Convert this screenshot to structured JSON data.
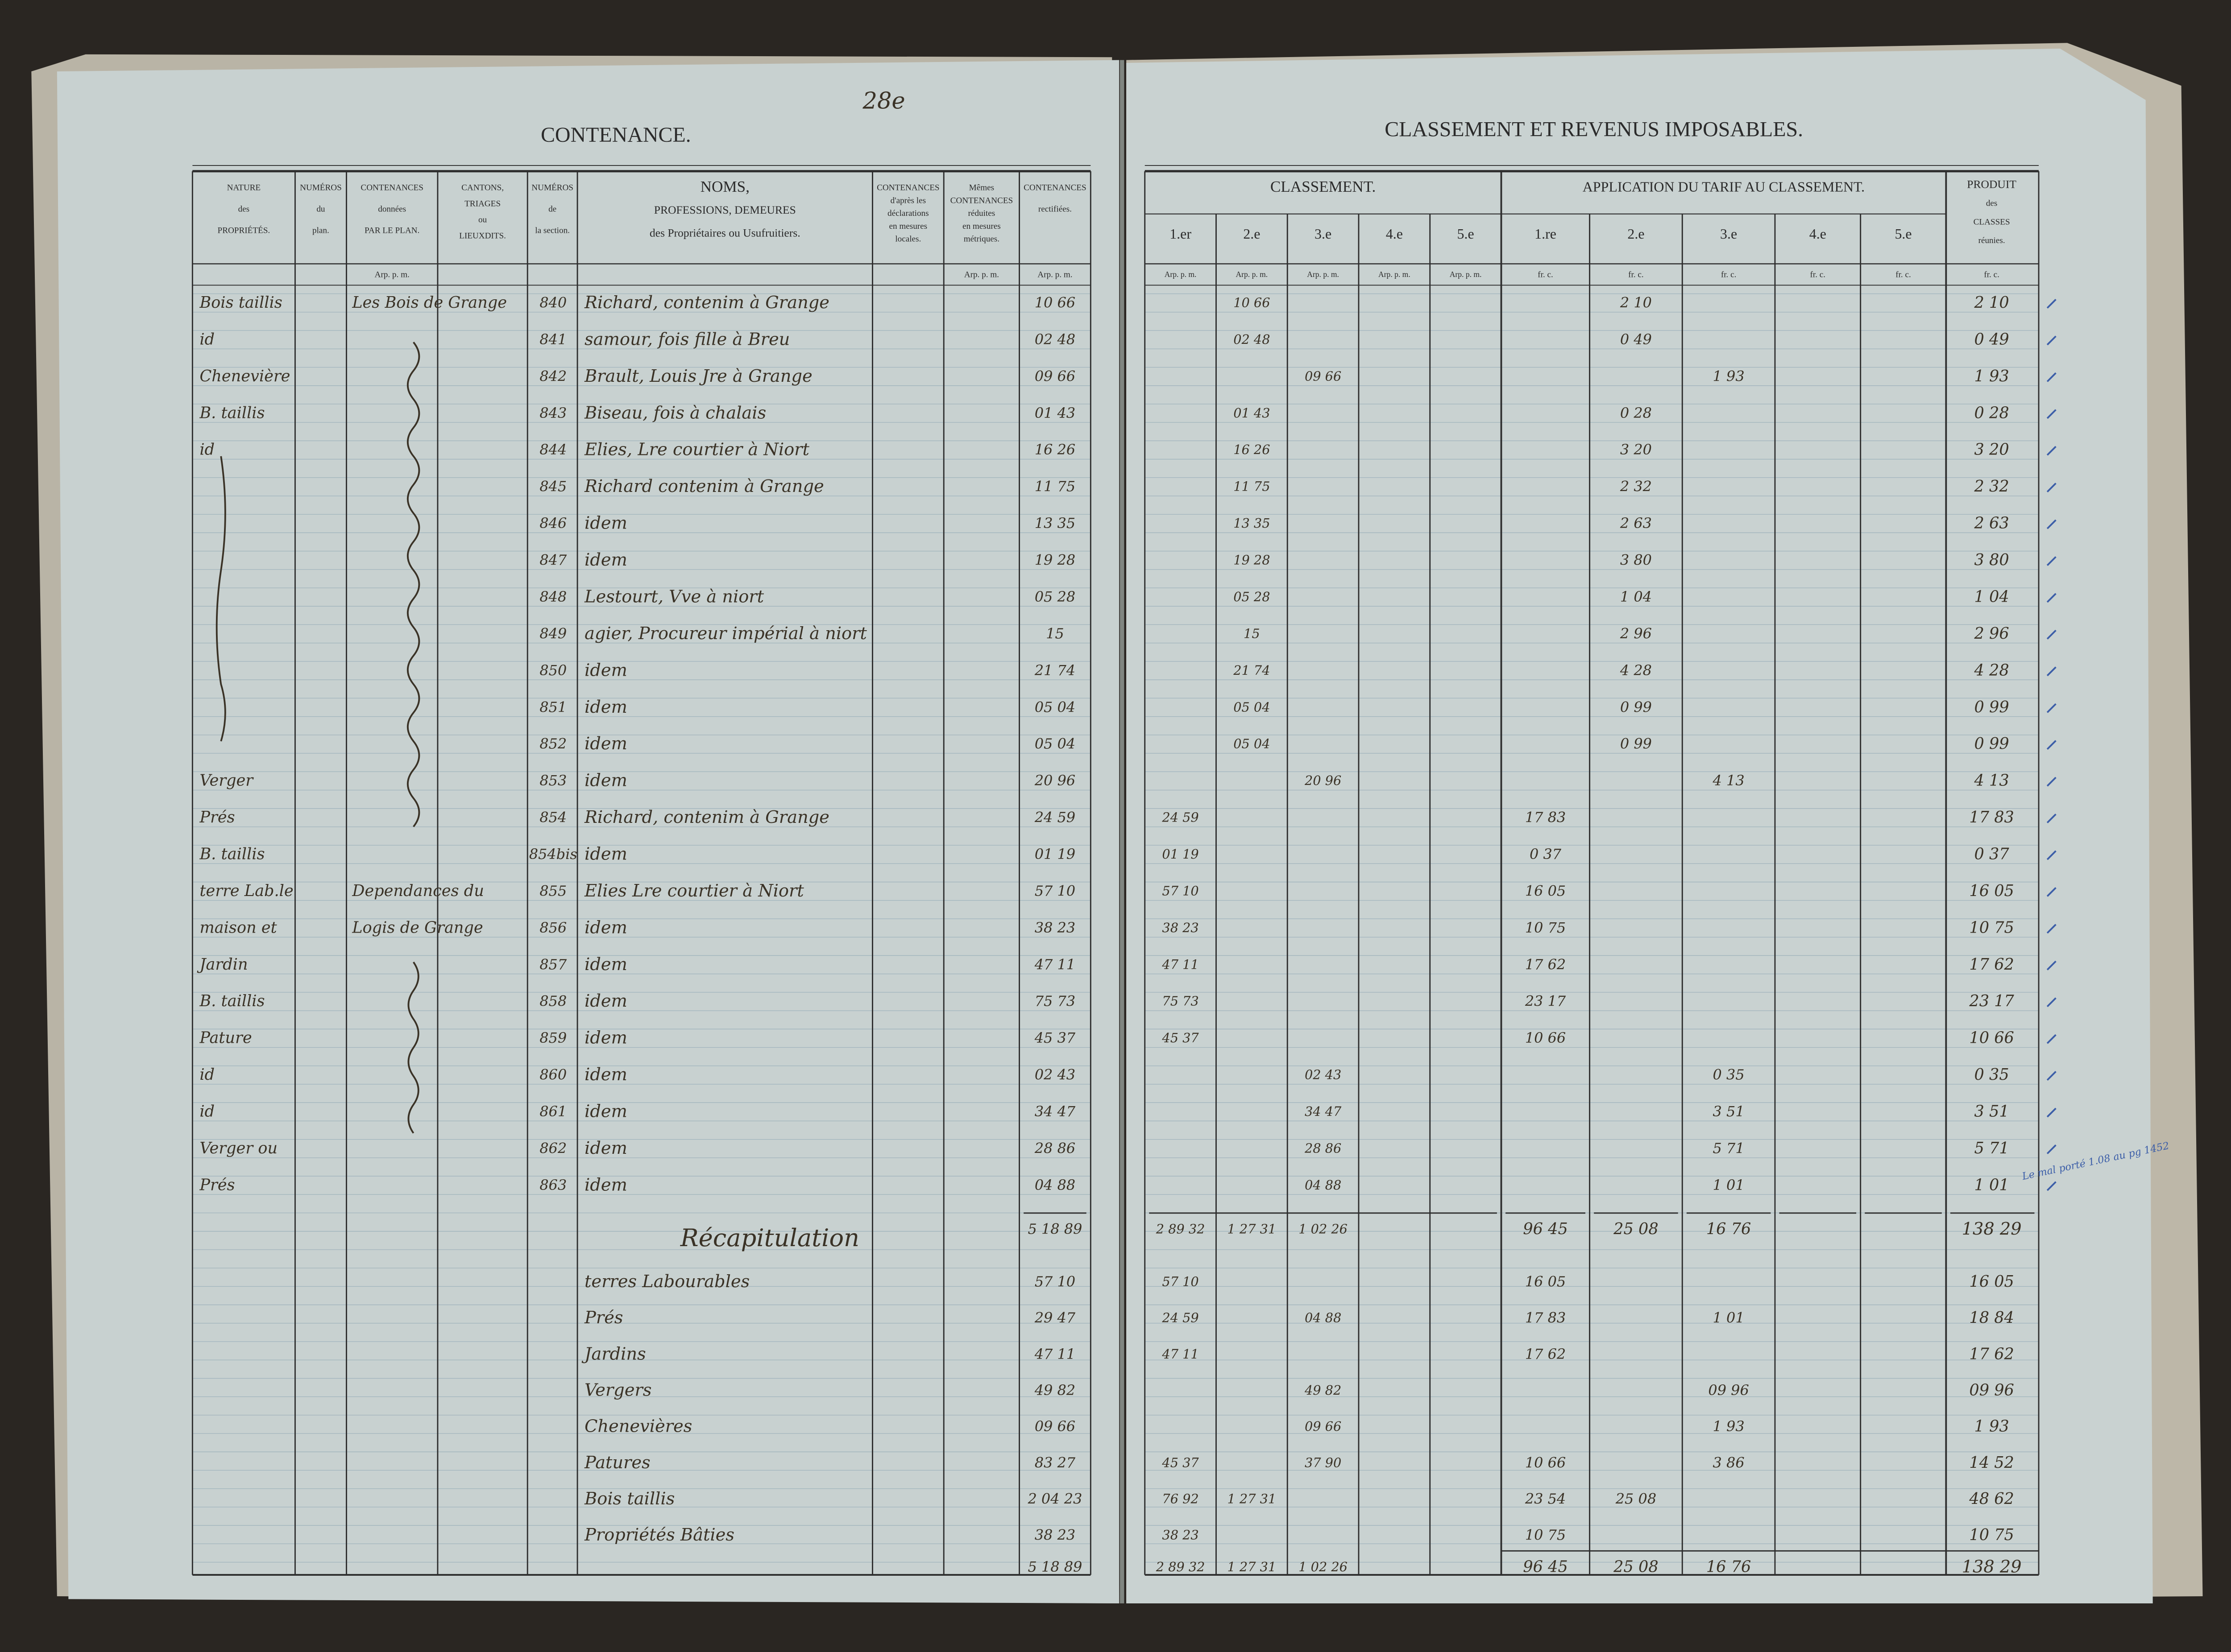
{
  "left_page": {
    "page_number": "28e",
    "title": "CONTENANCE.",
    "columns": [
      [
        "NATURE",
        "des",
        "PROPRIÉTÉS."
      ],
      [
        "NUMÉROS",
        "du",
        "plan."
      ],
      [
        "CONTENANCES",
        "données",
        "PAR LE PLAN."
      ],
      [
        "CANTONS,",
        "TRIAGES",
        "ou",
        "LIEUXDITS."
      ],
      [
        "NUMÉROS",
        "de",
        "la section."
      ],
      [
        "NOMS,",
        "PROFESSIONS, DEMEURES",
        "des Propriétaires ou Usufruitiers."
      ],
      [
        "CONTENANCES",
        "d'après les",
        "déclarations",
        "en mesures",
        "locales."
      ],
      [
        "Mêmes",
        "CONTENANCES",
        "réduites",
        "en mesures",
        "métriques."
      ],
      [
        "CONTENANCES",
        "rectifiées."
      ]
    ],
    "units": [
      "Arp. p. m.",
      "Arp. p. m.",
      "Arp. p. m."
    ]
  },
  "right_page": {
    "title": "CLASSEMENT ET REVENUS IMPOSABLES.",
    "classement_title": "CLASSEMENT.",
    "classes": [
      "1.er",
      "2.e",
      "3.e",
      "4.e",
      "5.e"
    ],
    "tarif_title": "APPLICATION DU TARIF AU CLASSEMENT.",
    "tarif_classes": [
      "1.re",
      "2.e",
      "3.e",
      "4.e",
      "5.e"
    ],
    "produit": [
      "PRODUIT",
      "des",
      "CLASSES",
      "réunies."
    ],
    "unit_arp": "Arp. p. m.",
    "unit_fr": "fr. c."
  },
  "rows": [
    {
      "numero": "840",
      "nature": "Bois taillis",
      "lieu": "Les Bois de Grange",
      "nom": "Richard, contenim à Grange",
      "contenance": "10 66",
      "classement": [
        null,
        "10 66",
        null,
        null,
        null
      ],
      "tarif": [
        null,
        "2 10",
        null,
        null,
        null
      ],
      "produit": "2 10"
    },
    {
      "numero": "841",
      "nature": "id",
      "nom": "samour, fois fille à Breu",
      "contenance": "02 48",
      "classement": [
        null,
        "02 48",
        null,
        null,
        null
      ],
      "tarif": [
        null,
        "0 49",
        null,
        null,
        null
      ],
      "produit": "0 49"
    },
    {
      "numero": "842",
      "nature": "Chenevière",
      "nom": "Brault, Louis Jre à Grange",
      "contenance": "09 66",
      "classement": [
        null,
        null,
        "09 66",
        null,
        null
      ],
      "tarif": [
        null,
        null,
        "1 93",
        null,
        null
      ],
      "produit": "1 93"
    },
    {
      "numero": "843",
      "nature": "B. taillis",
      "nom": "Biseau, fois à chalais",
      "contenance": "01 43",
      "classement": [
        null,
        "01 43",
        null,
        null,
        null
      ],
      "tarif": [
        null,
        "0 28",
        null,
        null,
        null
      ],
      "produit": "0 28"
    },
    {
      "numero": "844",
      "nature": "id",
      "nom": "Elies, Lre courtier à Niort",
      "contenance": "16 26",
      "classement": [
        null,
        "16 26",
        null,
        null,
        null
      ],
      "tarif": [
        null,
        "3 20",
        null,
        null,
        null
      ],
      "produit": "3 20"
    },
    {
      "numero": "845",
      "nom": "Richard contenim à Grange",
      "contenance": "11 75",
      "classement": [
        null,
        "11 75",
        null,
        null,
        null
      ],
      "tarif": [
        null,
        "2 32",
        null,
        null,
        null
      ],
      "produit": "2 32"
    },
    {
      "numero": "846",
      "nom": "idem",
      "contenance": "13 35",
      "classement": [
        null,
        "13 35",
        null,
        null,
        null
      ],
      "tarif": [
        null,
        "2 63",
        null,
        null,
        null
      ],
      "produit": "2 63"
    },
    {
      "numero": "847",
      "nom": "idem",
      "contenance": "19 28",
      "classement": [
        null,
        "19 28",
        null,
        null,
        null
      ],
      "tarif": [
        null,
        "3 80",
        null,
        null,
        null
      ],
      "produit": "3 80"
    },
    {
      "numero": "848",
      "nom": "Lestourt, Vve à niort",
      "contenance": "05 28",
      "classement": [
        null,
        "05 28",
        null,
        null,
        null
      ],
      "tarif": [
        null,
        "1 04",
        null,
        null,
        null
      ],
      "produit": "1 04"
    },
    {
      "numero": "849",
      "nom": "agier, Procureur impérial à niort",
      "contenance": "15",
      "classement": [
        null,
        "15",
        null,
        null,
        null
      ],
      "tarif": [
        null,
        "2 96",
        null,
        null,
        null
      ],
      "produit": "2 96"
    },
    {
      "numero": "850",
      "nom": "idem",
      "contenance": "21 74",
      "classement": [
        null,
        "21 74",
        null,
        null,
        null
      ],
      "tarif": [
        null,
        "4 28",
        null,
        null,
        null
      ],
      "produit": "4 28"
    },
    {
      "numero": "851",
      "nom": "idem",
      "contenance": "05 04",
      "classement": [
        null,
        "05 04",
        null,
        null,
        null
      ],
      "tarif": [
        null,
        "0 99",
        null,
        null,
        null
      ],
      "produit": "0 99"
    },
    {
      "numero": "852",
      "nom": "idem",
      "contenance": "05 04",
      "classement": [
        null,
        "05 04",
        null,
        null,
        null
      ],
      "tarif": [
        null,
        "0 99",
        null,
        null,
        null
      ],
      "produit": "0 99"
    },
    {
      "numero": "853",
      "nature": "Verger",
      "nom": "idem",
      "contenance": "20 96",
      "classement": [
        null,
        null,
        "20 96",
        null,
        null
      ],
      "tarif": [
        null,
        null,
        "4 13",
        null,
        null
      ],
      "produit": "4 13"
    },
    {
      "numero": "854",
      "nature": "Prés",
      "nom": "Richard, contenim à Grange",
      "contenance": "24 59",
      "classement": [
        "24 59",
        null,
        null,
        null,
        null
      ],
      "tarif": [
        "17 83",
        null,
        null,
        null,
        null
      ],
      "produit": "17 83"
    },
    {
      "numero": "854bis",
      "nature": "B. taillis",
      "nom": "idem",
      "contenance": "01 19",
      "classement": [
        "01 19",
        null,
        null,
        null,
        null
      ],
      "tarif": [
        "0 37",
        null,
        null,
        null,
        null
      ],
      "produit": "0 37"
    },
    {
      "numero": "855",
      "nature": "terre Lab.le",
      "lieu": "Dependances du",
      "nom": "Elies Lre courtier à Niort",
      "contenance": "57 10",
      "classement": [
        "57 10",
        null,
        null,
        null,
        null
      ],
      "tarif": [
        "16 05",
        null,
        null,
        null,
        null
      ],
      "produit": "16 05"
    },
    {
      "numero": "856",
      "nature": "maison et",
      "lieu": "Logis de Grange",
      "nom": "idem",
      "contenance": "38 23",
      "classement": [
        "38 23",
        null,
        null,
        null,
        null
      ],
      "tarif": [
        "10 75",
        null,
        null,
        null,
        null
      ],
      "produit": "10 75"
    },
    {
      "numero": "857",
      "nature": "Jardin",
      "nom": "idem",
      "contenance": "47 11",
      "classement": [
        "47 11",
        null,
        null,
        null,
        null
      ],
      "tarif": [
        "17 62",
        null,
        null,
        null,
        null
      ],
      "produit": "17 62"
    },
    {
      "numero": "858",
      "nature": "B. taillis",
      "nom": "idem",
      "contenance": "75 73",
      "classement": [
        "75 73",
        null,
        null,
        null,
        null
      ],
      "tarif": [
        "23 17",
        null,
        null,
        null,
        null
      ],
      "produit": "23 17"
    },
    {
      "numero": "859",
      "nature": "Pature",
      "nom": "idem",
      "contenance": "45 37",
      "classement": [
        "45 37",
        null,
        null,
        null,
        null
      ],
      "tarif": [
        "10 66",
        null,
        null,
        null,
        null
      ],
      "produit": "10 66"
    },
    {
      "numero": "860",
      "nature": "id",
      "nom": "idem",
      "contenance": "02 43",
      "classement": [
        null,
        null,
        "02 43",
        null,
        null
      ],
      "tarif": [
        null,
        null,
        "0 35",
        null,
        null
      ],
      "produit": "0 35"
    },
    {
      "numero": "861",
      "nature": "id",
      "nom": "idem",
      "contenance": "34 47",
      "classement": [
        null,
        null,
        "34 47",
        null,
        null
      ],
      "tarif": [
        null,
        null,
        "3 51",
        null,
        null
      ],
      "produit": "3 51"
    },
    {
      "numero": "862",
      "nature": "Verger ou",
      "nom": "idem",
      "contenance": "28 86",
      "classement": [
        null,
        null,
        "28 86",
        null,
        null
      ],
      "tarif": [
        null,
        null,
        "5 71",
        null,
        null
      ],
      "produit": "5 71"
    },
    {
      "numero": "863",
      "nature": "Prés",
      "nom": "idem",
      "contenance": "04 88",
      "classement": [
        null,
        null,
        "04 88",
        null,
        null
      ],
      "tarif": [
        null,
        null,
        "1 01",
        null,
        null
      ],
      "produit": "1 01"
    }
  ],
  "totals": {
    "contenance": "5 18 89",
    "classement": [
      "2 89 32",
      "1 27 31",
      "1 02 26",
      null,
      null
    ],
    "tarif": [
      "96 45",
      "25 08",
      "16 76",
      null,
      null
    ],
    "produit": "138 29"
  },
  "recap": {
    "title": "Récapitulation",
    "rows": [
      {
        "label": "terres Labourables",
        "contenance": "57 10",
        "classement": [
          "57 10",
          null,
          null,
          null,
          null
        ],
        "tarif": [
          "16 05",
          null,
          null,
          null,
          null
        ],
        "produit": "16 05"
      },
      {
        "label": "Prés",
        "contenance": "29 47",
        "classement": [
          "24 59",
          null,
          "04 88",
          null,
          null
        ],
        "tarif": [
          "17 83",
          null,
          "1 01",
          null,
          null
        ],
        "produit": "18 84"
      },
      {
        "label": "Jardins",
        "contenance": "47 11",
        "classement": [
          "47 11",
          null,
          null,
          null,
          null
        ],
        "tarif": [
          "17 62",
          null,
          null,
          null,
          null
        ],
        "produit": "17 62"
      },
      {
        "label": "Vergers",
        "contenance": "49 82",
        "classement": [
          null,
          null,
          "49 82",
          null,
          null
        ],
        "tarif": [
          null,
          null,
          "09 96",
          null,
          null
        ],
        "produit": "09 96"
      },
      {
        "label": "Chenevières",
        "contenance": "09 66",
        "classement": [
          null,
          null,
          "09 66",
          null,
          null
        ],
        "tarif": [
          null,
          null,
          "1 93",
          null,
          null
        ],
        "produit": "1 93"
      },
      {
        "label": "Patures",
        "contenance": "83 27",
        "classement": [
          "45 37",
          null,
          "37 90",
          null,
          null
        ],
        "tarif": [
          "10 66",
          null,
          "3 86",
          null,
          null
        ],
        "produit": "14 52"
      },
      {
        "label": "Bois taillis",
        "contenance": "2 04 23",
        "classement": [
          "76 92",
          "1 27 31",
          null,
          null,
          null
        ],
        "tarif": [
          "23 54",
          "25 08",
          null,
          null,
          null
        ],
        "produit": "48 62"
      },
      {
        "label": "Propriétés Bâties",
        "contenance": "38 23",
        "classement": [
          "38 23",
          null,
          null,
          null,
          null
        ],
        "tarif": [
          "10 75",
          null,
          null,
          null,
          null
        ],
        "produit": "10 75"
      }
    ],
    "totals": {
      "contenance": "5 18 89",
      "classement": [
        "2 89 32",
        "1 27 31",
        "1 02 26",
        null,
        null
      ],
      "tarif": [
        "96 45",
        "25 08",
        "16 76",
        null,
        null
      ],
      "produit": "138 29"
    }
  },
  "note": "Le mal porté 1.08 au pg 1452"
}
